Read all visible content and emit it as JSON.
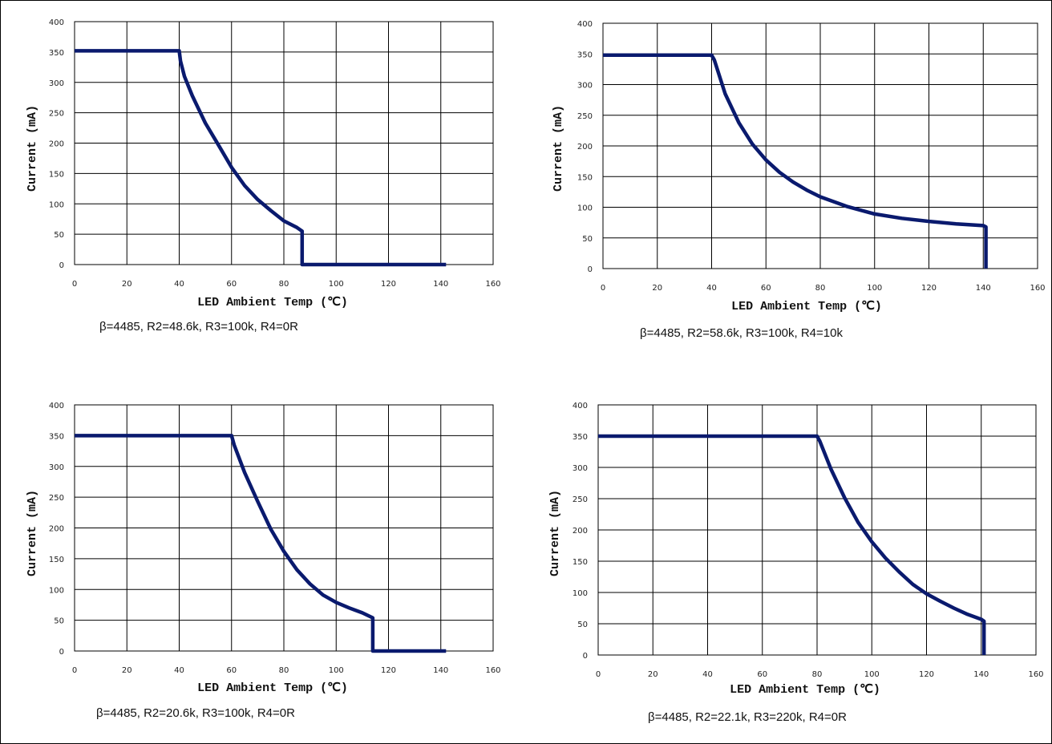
{
  "chart_data": [
    {
      "type": "line",
      "xlabel": "LED Ambient Temp (℃)",
      "ylabel": "Current (mA)",
      "xlim": [
        0,
        160
      ],
      "ylim": [
        0,
        400
      ],
      "x_ticks": [
        0,
        20,
        40,
        60,
        80,
        100,
        120,
        140,
        160
      ],
      "y_ticks": [
        0,
        50,
        100,
        150,
        200,
        250,
        300,
        350,
        400
      ],
      "grid": true,
      "caption": "β=4485, R2=48.6k, R3=100k, R4=0R",
      "series": [
        {
          "color": "#0a1a6e",
          "x": [
            0,
            40,
            40.5,
            42,
            45,
            50,
            55,
            60,
            65,
            70,
            75,
            80,
            85,
            87,
            87,
            100,
            120,
            142
          ],
          "y": [
            352,
            352,
            335,
            310,
            278,
            233,
            197,
            160,
            130,
            107,
            89,
            72,
            61,
            55,
            0,
            0,
            0,
            0
          ]
        }
      ]
    },
    {
      "type": "line",
      "xlabel": "LED Ambient Temp (℃)",
      "ylabel": "Current (mA)",
      "xlim": [
        0,
        160
      ],
      "ylim": [
        0,
        400
      ],
      "x_ticks": [
        0,
        20,
        40,
        60,
        80,
        100,
        120,
        140,
        160
      ],
      "y_ticks": [
        0,
        50,
        100,
        150,
        200,
        250,
        300,
        350,
        400
      ],
      "grid": true,
      "caption": "β=4485, R2=58.6k, R3=100k, R4=10k",
      "series": [
        {
          "color": "#0a1a6e",
          "x": [
            0,
            40,
            41,
            45,
            50,
            55,
            60,
            65,
            70,
            75,
            80,
            90,
            100,
            110,
            120,
            130,
            140,
            141,
            141
          ],
          "y": [
            348,
            348,
            340,
            285,
            238,
            203,
            177,
            157,
            141,
            128,
            117,
            101,
            89,
            82,
            77,
            73,
            70,
            68,
            0
          ]
        }
      ]
    },
    {
      "type": "line",
      "xlabel": "LED Ambient Temp (℃)",
      "ylabel": "Current (mA)",
      "xlim": [
        0,
        160
      ],
      "ylim": [
        0,
        400
      ],
      "x_ticks": [
        0,
        20,
        40,
        60,
        80,
        100,
        120,
        140,
        160
      ],
      "y_ticks": [
        0,
        50,
        100,
        150,
        200,
        250,
        300,
        350,
        400
      ],
      "grid": true,
      "caption": "β=4485, R2=20.6k, R3=100k, R4=0R",
      "series": [
        {
          "color": "#0a1a6e",
          "x": [
            0,
            60,
            61,
            65,
            70,
            75,
            80,
            85,
            90,
            95,
            100,
            105,
            110,
            114,
            114,
            120,
            142
          ],
          "y": [
            350,
            350,
            335,
            290,
            243,
            198,
            162,
            132,
            109,
            91,
            79,
            70,
            62,
            54,
            0,
            0,
            0
          ]
        }
      ]
    },
    {
      "type": "line",
      "xlabel": "LED Ambient Temp (℃)",
      "ylabel": "Current (mA)",
      "xlim": [
        0,
        160
      ],
      "ylim": [
        0,
        400
      ],
      "x_ticks": [
        0,
        20,
        40,
        60,
        80,
        100,
        120,
        140,
        160
      ],
      "y_ticks": [
        0,
        50,
        100,
        150,
        200,
        250,
        300,
        350,
        400
      ],
      "grid": true,
      "caption": "β=4485, R2=22.1k, R3=220k, R4=0R",
      "series": [
        {
          "color": "#0a1a6e",
          "x": [
            0,
            80,
            81,
            85,
            90,
            95,
            100,
            105,
            110,
            115,
            120,
            125,
            130,
            135,
            140,
            141,
            141
          ],
          "y": [
            350,
            350,
            342,
            298,
            252,
            212,
            181,
            155,
            133,
            113,
            98,
            86,
            75,
            65,
            57,
            54,
            0
          ]
        }
      ]
    }
  ]
}
